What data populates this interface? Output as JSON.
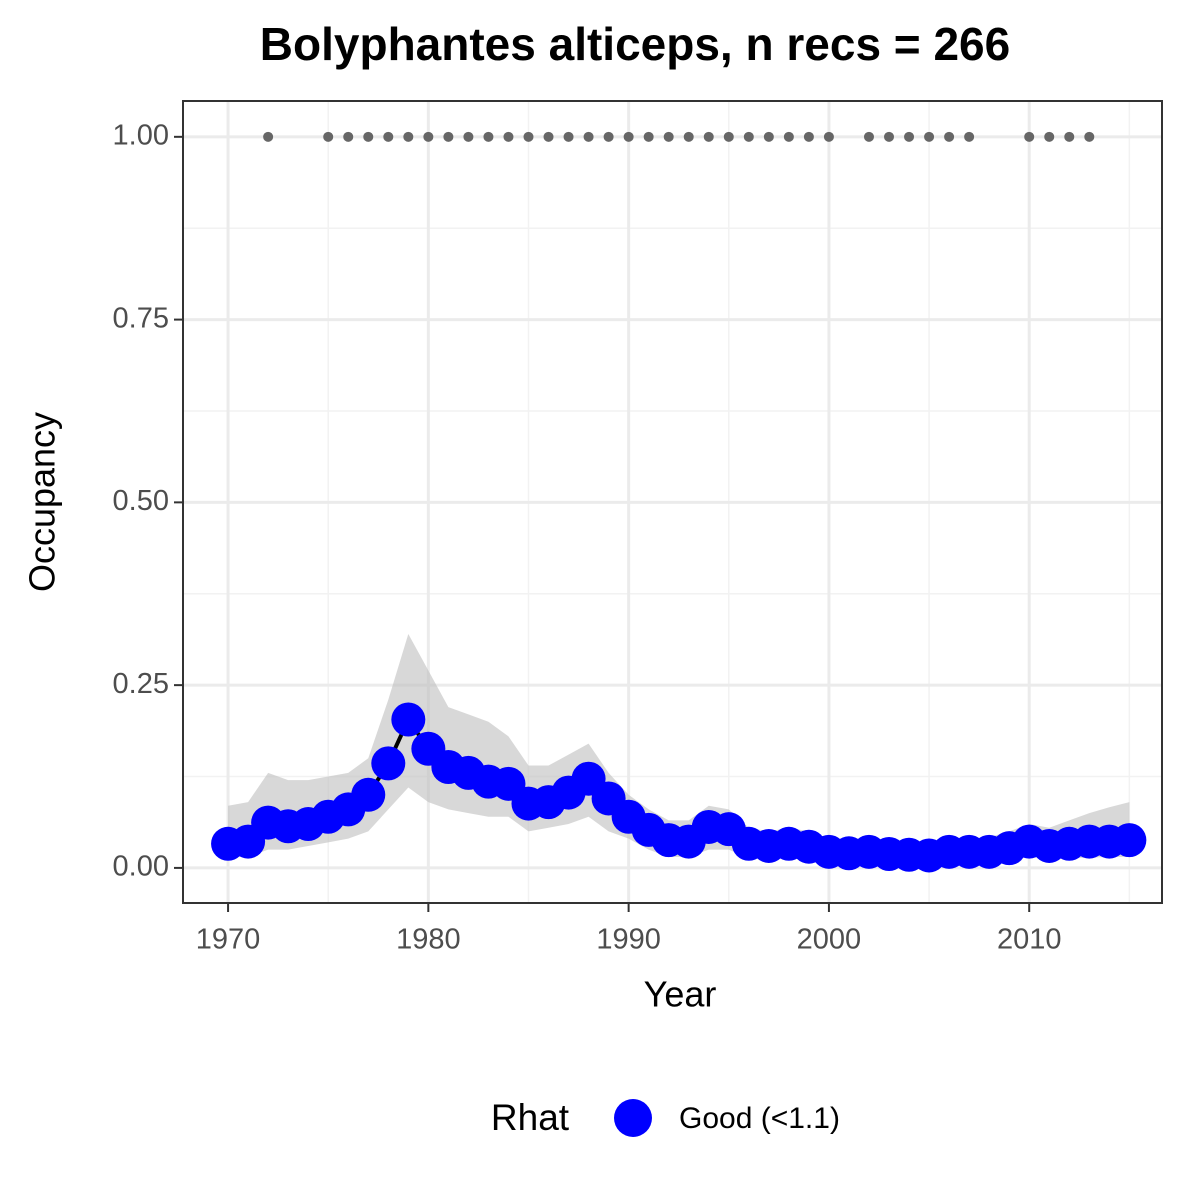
{
  "chart_data": {
    "type": "line",
    "title": "Bolyphantes alticeps, n recs = 266",
    "xlabel": "Year",
    "ylabel": "Occupancy",
    "x": [
      1970,
      1971,
      1972,
      1973,
      1974,
      1975,
      1976,
      1977,
      1978,
      1979,
      1980,
      1981,
      1982,
      1983,
      1984,
      1985,
      1986,
      1987,
      1988,
      1989,
      1990,
      1991,
      1992,
      1993,
      1994,
      1995,
      1996,
      1997,
      1998,
      1999,
      2000,
      2001,
      2002,
      2003,
      2004,
      2005,
      2006,
      2007,
      2008,
      2009,
      2010,
      2011,
      2012,
      2013,
      2014,
      2015
    ],
    "series": [
      {
        "name": "Good (<1.1)",
        "color": "#0000ff",
        "values": [
          0.033,
          0.036,
          0.062,
          0.057,
          0.06,
          0.07,
          0.08,
          0.1,
          0.143,
          0.203,
          0.163,
          0.138,
          0.13,
          0.118,
          0.115,
          0.088,
          0.09,
          0.103,
          0.122,
          0.095,
          0.07,
          0.052,
          0.038,
          0.036,
          0.056,
          0.053,
          0.033,
          0.03,
          0.033,
          0.029,
          0.022,
          0.02,
          0.022,
          0.019,
          0.018,
          0.017,
          0.022,
          0.022,
          0.022,
          0.027,
          0.036,
          0.03,
          0.033,
          0.036,
          0.036,
          0.038
        ],
        "lower": [
          0.015,
          0.015,
          0.025,
          0.025,
          0.03,
          0.035,
          0.04,
          0.05,
          0.08,
          0.11,
          0.09,
          0.08,
          0.075,
          0.07,
          0.07,
          0.05,
          0.055,
          0.06,
          0.07,
          0.05,
          0.04,
          0.025,
          0.015,
          0.015,
          0.025,
          0.025,
          0.013,
          0.012,
          0.013,
          0.011,
          0.008,
          0.008,
          0.008,
          0.007,
          0.007,
          0.007,
          0.008,
          0.008,
          0.008,
          0.01,
          0.015,
          0.012,
          0.013,
          0.014,
          0.015,
          0.015
        ],
        "upper": [
          0.085,
          0.09,
          0.13,
          0.12,
          0.12,
          0.125,
          0.13,
          0.15,
          0.23,
          0.32,
          0.27,
          0.22,
          0.21,
          0.2,
          0.18,
          0.14,
          0.14,
          0.155,
          0.17,
          0.13,
          0.1,
          0.08,
          0.065,
          0.065,
          0.085,
          0.08,
          0.055,
          0.05,
          0.055,
          0.05,
          0.04,
          0.04,
          0.04,
          0.038,
          0.037,
          0.036,
          0.04,
          0.04,
          0.042,
          0.05,
          0.06,
          0.055,
          0.065,
          0.075,
          0.083,
          0.09
        ]
      }
    ],
    "ribbon_color": "#bebebe",
    "line_color": "#000000",
    "records": {
      "color": "#666666",
      "x": [
        1972,
        1975,
        1976,
        1977,
        1978,
        1979,
        1980,
        1981,
        1982,
        1983,
        1984,
        1985,
        1986,
        1987,
        1988,
        1989,
        1990,
        1991,
        1992,
        1993,
        1994,
        1995,
        1996,
        1997,
        1998,
        1999,
        2000,
        2002,
        2003,
        2004,
        2005,
        2006,
        2007,
        2010,
        2011,
        2012,
        2013
      ],
      "values": [
        1,
        1,
        1,
        1,
        1,
        1,
        1,
        1,
        1,
        1,
        1,
        1,
        1,
        1,
        1,
        1,
        1,
        1,
        1,
        1,
        1,
        1,
        1,
        1,
        1,
        1,
        1,
        1,
        1,
        1,
        1,
        1,
        1,
        1,
        1,
        1,
        1
      ]
    },
    "xlim": [
      1967.75,
      2016.63
    ],
    "ylim": [
      -0.048,
      1.049
    ],
    "xticks": [
      1970,
      1980,
      1990,
      2000,
      2010
    ],
    "yticks": [
      {
        "value": 0,
        "label": "0.00"
      },
      {
        "value": 0.25,
        "label": "0.25"
      },
      {
        "value": 0.5,
        "label": "0.50"
      },
      {
        "value": 0.75,
        "label": "0.75"
      },
      {
        "value": 1,
        "label": "1.00"
      }
    ],
    "grid": true,
    "legend_title": "Rhat",
    "legend": "bottom"
  }
}
